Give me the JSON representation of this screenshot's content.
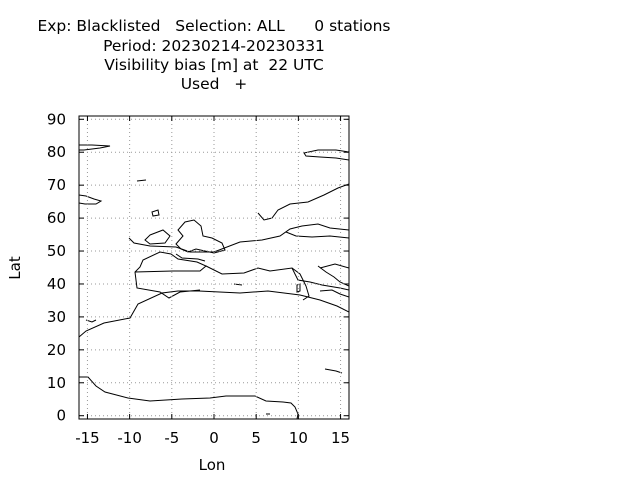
{
  "title": {
    "line1": "Exp: Blacklisted   Selection: ALL      0 stations",
    "line2": "Period: 20230214-20230331",
    "line3": "Visibility bias [m] at  22 UTC",
    "line4": "Used   +"
  },
  "chart_data": {
    "type": "scatter",
    "title": "Visibility bias [m] at  22 UTC",
    "xlabel": "Lon",
    "ylabel": "Lat",
    "xlim": [
      -16,
      16
    ],
    "ylim": [
      -1,
      91
    ],
    "xticks": [
      -15,
      -10,
      -5,
      0,
      5,
      10,
      15
    ],
    "yticks": [
      0,
      10,
      20,
      30,
      40,
      50,
      60,
      70,
      80,
      90
    ],
    "grid": true,
    "legend": "Used   +",
    "series": [
      {
        "name": "Used",
        "marker": "+",
        "points": []
      }
    ],
    "background": "coastline map (Europe / North Africa)"
  }
}
